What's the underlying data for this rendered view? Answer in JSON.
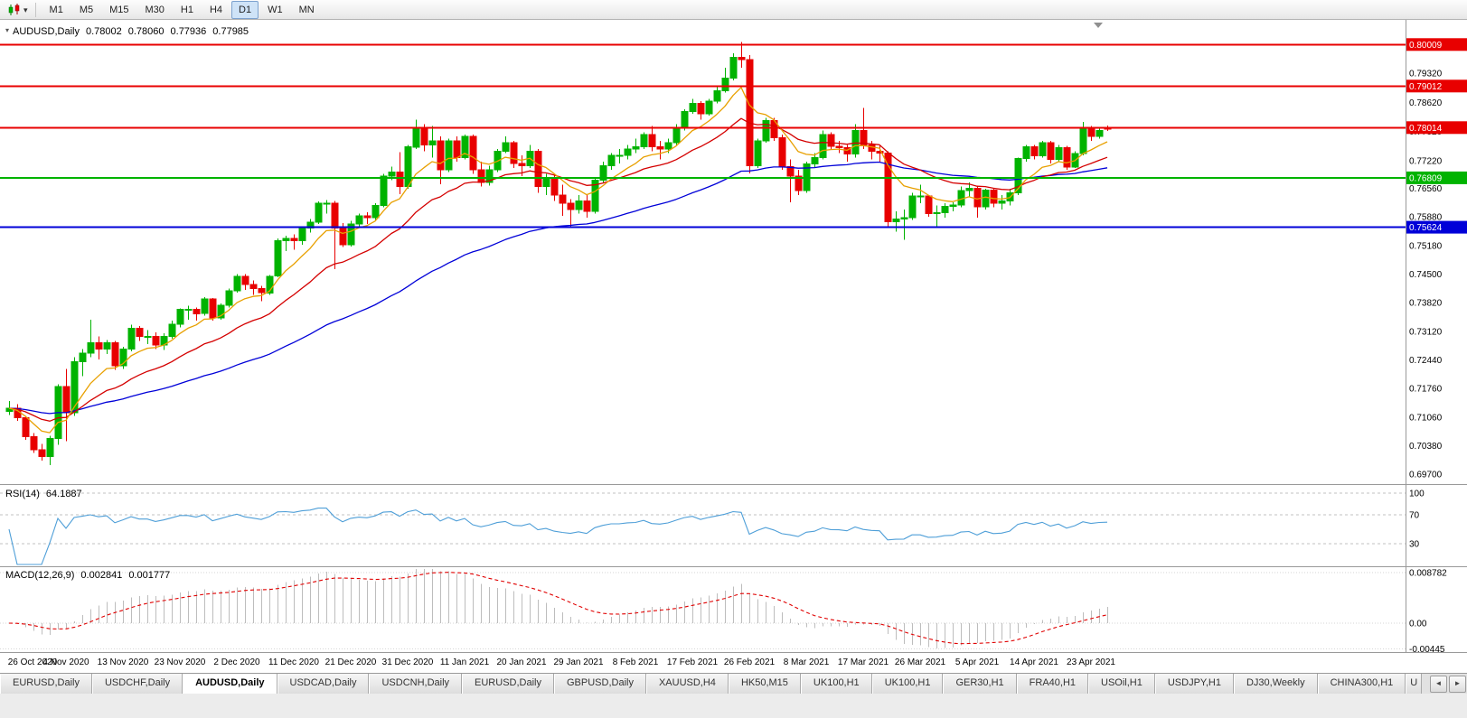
{
  "toolbar": {
    "timeframes": [
      "M1",
      "M5",
      "M15",
      "M30",
      "H1",
      "H4",
      "D1",
      "W1",
      "MN"
    ],
    "active_timeframe": "D1",
    "dropdown_icon": "▾"
  },
  "chart": {
    "symbol_title": "AUDUSD,Daily",
    "oct_icon": "▾",
    "ohlc": {
      "open": "0.78002",
      "high": "0.78060",
      "low": "0.77936",
      "close": "0.77985"
    }
  },
  "rsi_panel": {
    "label": "RSI(14)",
    "value": "64.1887",
    "levels": [
      100,
      70,
      30
    ],
    "axis_labels": [
      "100",
      "70",
      "30"
    ],
    "line_color": "#4f9fd8"
  },
  "macd_panel": {
    "label": "MACD(12,26,9)",
    "value_main": "0.002841",
    "value_signal": "0.001777",
    "axis_values": [
      0.008782,
      0,
      -0.00445
    ],
    "axis_labels": [
      "0.008782",
      "0.00",
      "-0.00445"
    ],
    "histogram_color": "#bdbdbd",
    "signal_color": "#e00000"
  },
  "tabs": {
    "items": [
      "EURUSD,Daily",
      "USDCHF,Daily",
      "AUDUSD,Daily",
      "USDCAD,Daily",
      "USDCNH,Daily",
      "EURUSD,Daily",
      "GBPUSD,Daily",
      "XAUUSD,H4",
      "HK50,M15",
      "UK100,H1",
      "UK100,H1",
      "GER30,H1",
      "FRA40,H1",
      "USOil,H1",
      "USDJPY,H1",
      "DJ30,Weekly",
      "CHINA300,H1"
    ],
    "active_index": 2,
    "partial_tab": "U",
    "scroll_left_icon": "◄",
    "scroll_right_icon": "►"
  },
  "chart_data": {
    "type": "candlestick",
    "title": "AUDUSD,Daily",
    "symbol": "AUDUSD",
    "timeframe": "Daily",
    "x_labels": [
      "26 Oct 2020",
      "4 Nov 2020",
      "13 Nov 2020",
      "23 Nov 2020",
      "2 Dec 2020",
      "11 Dec 2020",
      "21 Dec 2020",
      "31 Dec 2020",
      "11 Jan 2021",
      "20 Jan 2021",
      "29 Jan 2021",
      "8 Feb 2021",
      "17 Feb 2021",
      "26 Feb 2021",
      "8 Mar 2021",
      "17 Mar 2021",
      "26 Mar 2021",
      "5 Apr 2021",
      "14 Apr 2021",
      "23 Apr 2021"
    ],
    "bars_per_label": 7,
    "price_range": [
      0.6946,
      0.806
    ],
    "price_axis_ticks": [
      0.7932,
      0.7862,
      0.7792,
      0.7722,
      0.7656,
      0.7588,
      0.7518,
      0.745,
      0.7382,
      0.7312,
      0.7244,
      0.7176,
      0.7106,
      0.7038,
      0.697
    ],
    "up_color": "#00b300",
    "down_color": "#e80000",
    "horizontal_lines": [
      {
        "price": 0.80009,
        "label": "0.80009",
        "color": "#e80000"
      },
      {
        "price": 0.79012,
        "label": "0.79012",
        "color": "#e80000"
      },
      {
        "price": 0.78014,
        "label": "0.78014",
        "color": "#e80000"
      },
      {
        "price": 0.76809,
        "label": "0.76809",
        "color": "#00b300"
      },
      {
        "price": 0.75624,
        "label": "0.75624",
        "color": "#0000d8"
      }
    ],
    "moving_averages": [
      {
        "type": "EMA",
        "period": 55,
        "color": "#0000d8"
      },
      {
        "type": "EMA",
        "period": 20,
        "color": "#d40000"
      },
      {
        "type": "EMA",
        "period": 8,
        "color": "#e8a000"
      }
    ],
    "candles_ohlc": [
      [
        0.712,
        0.7145,
        0.7112,
        0.7128
      ],
      [
        0.7128,
        0.7138,
        0.7098,
        0.7105
      ],
      [
        0.7105,
        0.711,
        0.7052,
        0.706
      ],
      [
        0.706,
        0.7068,
        0.7021,
        0.7028
      ],
      [
        0.7028,
        0.7042,
        0.7002,
        0.7012
      ],
      [
        0.7012,
        0.7062,
        0.6991,
        0.7055
      ],
      [
        0.7055,
        0.7185,
        0.704,
        0.718
      ],
      [
        0.718,
        0.7222,
        0.7049,
        0.7117
      ],
      [
        0.7117,
        0.725,
        0.711,
        0.724
      ],
      [
        0.724,
        0.727,
        0.7205,
        0.726
      ],
      [
        0.726,
        0.734,
        0.725,
        0.7285
      ],
      [
        0.7285,
        0.73,
        0.7245,
        0.727
      ],
      [
        0.727,
        0.7292,
        0.7258,
        0.7285
      ],
      [
        0.7285,
        0.729,
        0.722,
        0.723
      ],
      [
        0.723,
        0.7275,
        0.7222,
        0.727
      ],
      [
        0.727,
        0.7328,
        0.7265,
        0.732
      ],
      [
        0.732,
        0.7325,
        0.729,
        0.73
      ],
      [
        0.73,
        0.7315,
        0.7282,
        0.73
      ],
      [
        0.73,
        0.731,
        0.727,
        0.728
      ],
      [
        0.728,
        0.7308,
        0.7268,
        0.73
      ],
      [
        0.73,
        0.7338,
        0.7295,
        0.733
      ],
      [
        0.733,
        0.7368,
        0.7322,
        0.7365
      ],
      [
        0.7365,
        0.7374,
        0.734,
        0.7365
      ],
      [
        0.7365,
        0.737,
        0.7338,
        0.7355
      ],
      [
        0.7355,
        0.7395,
        0.735,
        0.739
      ],
      [
        0.739,
        0.7392,
        0.7338,
        0.7345
      ],
      [
        0.7345,
        0.738,
        0.734,
        0.7375
      ],
      [
        0.7375,
        0.7415,
        0.737,
        0.741
      ],
      [
        0.741,
        0.745,
        0.7405,
        0.7445
      ],
      [
        0.7445,
        0.745,
        0.7412,
        0.7425
      ],
      [
        0.7425,
        0.7435,
        0.74,
        0.7415
      ],
      [
        0.7415,
        0.7422,
        0.7385,
        0.7405
      ],
      [
        0.7405,
        0.7448,
        0.74,
        0.7445
      ],
      [
        0.7445,
        0.7535,
        0.7442,
        0.753
      ],
      [
        0.753,
        0.7542,
        0.7505,
        0.7535
      ],
      [
        0.7535,
        0.7545,
        0.7508,
        0.753
      ],
      [
        0.753,
        0.7565,
        0.752,
        0.756
      ],
      [
        0.756,
        0.7582,
        0.755,
        0.7575
      ],
      [
        0.7575,
        0.7624,
        0.757,
        0.762
      ],
      [
        0.762,
        0.7628,
        0.7595,
        0.762
      ],
      [
        0.762,
        0.7625,
        0.7462,
        0.756
      ],
      [
        0.756,
        0.7572,
        0.7515,
        0.752
      ],
      [
        0.752,
        0.7578,
        0.7516,
        0.757
      ],
      [
        0.757,
        0.7595,
        0.7562,
        0.759
      ],
      [
        0.759,
        0.7598,
        0.757,
        0.7585
      ],
      [
        0.7585,
        0.762,
        0.758,
        0.7615
      ],
      [
        0.7615,
        0.769,
        0.761,
        0.7685
      ],
      [
        0.7685,
        0.7708,
        0.7675,
        0.7695
      ],
      [
        0.7695,
        0.7743,
        0.7642,
        0.766
      ],
      [
        0.766,
        0.776,
        0.7655,
        0.7755
      ],
      [
        0.7755,
        0.782,
        0.775,
        0.78
      ],
      [
        0.78,
        0.781,
        0.7745,
        0.776
      ],
      [
        0.776,
        0.7805,
        0.773,
        0.777
      ],
      [
        0.777,
        0.778,
        0.7666,
        0.77
      ],
      [
        0.77,
        0.7775,
        0.7695,
        0.777
      ],
      [
        0.777,
        0.778,
        0.772,
        0.773
      ],
      [
        0.773,
        0.7785,
        0.7725,
        0.778
      ],
      [
        0.778,
        0.7785,
        0.769,
        0.77
      ],
      [
        0.77,
        0.772,
        0.766,
        0.767
      ],
      [
        0.767,
        0.771,
        0.7662,
        0.77
      ],
      [
        0.77,
        0.775,
        0.7695,
        0.7745
      ],
      [
        0.7745,
        0.778,
        0.774,
        0.7765
      ],
      [
        0.7765,
        0.777,
        0.7705,
        0.7715
      ],
      [
        0.7715,
        0.7735,
        0.7685,
        0.771
      ],
      [
        0.771,
        0.776,
        0.7705,
        0.7745
      ],
      [
        0.7745,
        0.775,
        0.7645,
        0.766
      ],
      [
        0.766,
        0.769,
        0.764,
        0.768
      ],
      [
        0.768,
        0.769,
        0.7625,
        0.764
      ],
      [
        0.764,
        0.7665,
        0.759,
        0.762
      ],
      [
        0.762,
        0.763,
        0.7562,
        0.7605
      ],
      [
        0.7605,
        0.764,
        0.7595,
        0.7625
      ],
      [
        0.7625,
        0.764,
        0.7585,
        0.76
      ],
      [
        0.76,
        0.768,
        0.7595,
        0.7675
      ],
      [
        0.7675,
        0.772,
        0.767,
        0.771
      ],
      [
        0.771,
        0.774,
        0.77,
        0.7735
      ],
      [
        0.7735,
        0.775,
        0.7715,
        0.7735
      ],
      [
        0.7735,
        0.776,
        0.7725,
        0.775
      ],
      [
        0.775,
        0.7775,
        0.774,
        0.7755
      ],
      [
        0.7755,
        0.779,
        0.775,
        0.7785
      ],
      [
        0.7785,
        0.7805,
        0.7745,
        0.7755
      ],
      [
        0.7755,
        0.777,
        0.7725,
        0.775
      ],
      [
        0.775,
        0.7775,
        0.774,
        0.7765
      ],
      [
        0.7765,
        0.781,
        0.776,
        0.78
      ],
      [
        0.78,
        0.7845,
        0.7795,
        0.784
      ],
      [
        0.784,
        0.787,
        0.7835,
        0.786
      ],
      [
        0.786,
        0.7865,
        0.782,
        0.7835
      ],
      [
        0.7835,
        0.787,
        0.783,
        0.7865
      ],
      [
        0.7865,
        0.79,
        0.786,
        0.789
      ],
      [
        0.789,
        0.7945,
        0.7885,
        0.792
      ],
      [
        0.792,
        0.798,
        0.7915,
        0.797
      ],
      [
        0.797,
        0.8007,
        0.7945,
        0.7965
      ],
      [
        0.7965,
        0.7975,
        0.7692,
        0.771
      ],
      [
        0.771,
        0.7775,
        0.7705,
        0.777
      ],
      [
        0.777,
        0.7825,
        0.7765,
        0.7818
      ],
      [
        0.7818,
        0.7825,
        0.777,
        0.7777
      ],
      [
        0.7777,
        0.7785,
        0.77,
        0.7708
      ],
      [
        0.7708,
        0.7725,
        0.7622,
        0.7685
      ],
      [
        0.7685,
        0.77,
        0.764,
        0.765
      ],
      [
        0.765,
        0.772,
        0.7645,
        0.7714
      ],
      [
        0.7714,
        0.774,
        0.7705,
        0.7729
      ],
      [
        0.7729,
        0.7795,
        0.7725,
        0.7785
      ],
      [
        0.7785,
        0.779,
        0.775,
        0.7757
      ],
      [
        0.7757,
        0.777,
        0.774,
        0.7753
      ],
      [
        0.7753,
        0.776,
        0.772,
        0.7738
      ],
      [
        0.7738,
        0.781,
        0.773,
        0.7795
      ],
      [
        0.7795,
        0.7849,
        0.775,
        0.776
      ],
      [
        0.776,
        0.777,
        0.7725,
        0.7745
      ],
      [
        0.7745,
        0.776,
        0.772,
        0.774
      ],
      [
        0.774,
        0.7745,
        0.7563,
        0.7575
      ],
      [
        0.7575,
        0.76,
        0.7552,
        0.7582
      ],
      [
        0.7582,
        0.7605,
        0.7532,
        0.7585
      ],
      [
        0.7585,
        0.7645,
        0.758,
        0.7637
      ],
      [
        0.7637,
        0.7665,
        0.762,
        0.7637
      ],
      [
        0.7637,
        0.764,
        0.7588,
        0.7595
      ],
      [
        0.7595,
        0.7615,
        0.756,
        0.7597
      ],
      [
        0.7597,
        0.762,
        0.7585,
        0.7612
      ],
      [
        0.7612,
        0.7622,
        0.76,
        0.7616
      ],
      [
        0.7616,
        0.766,
        0.761,
        0.765
      ],
      [
        0.765,
        0.767,
        0.7635,
        0.7656
      ],
      [
        0.7656,
        0.766,
        0.7585,
        0.7611
      ],
      [
        0.7611,
        0.7655,
        0.7605,
        0.7651
      ],
      [
        0.7651,
        0.7655,
        0.761,
        0.762
      ],
      [
        0.762,
        0.764,
        0.7605,
        0.7625
      ],
      [
        0.7625,
        0.7655,
        0.7615,
        0.7645
      ],
      [
        0.7645,
        0.773,
        0.764,
        0.7727
      ],
      [
        0.7727,
        0.776,
        0.772,
        0.7755
      ],
      [
        0.7755,
        0.776,
        0.7725,
        0.7734
      ],
      [
        0.7734,
        0.777,
        0.773,
        0.7765
      ],
      [
        0.7765,
        0.777,
        0.7715,
        0.7725
      ],
      [
        0.7725,
        0.776,
        0.772,
        0.7753
      ],
      [
        0.7753,
        0.7758,
        0.77,
        0.7707
      ],
      [
        0.7707,
        0.7745,
        0.7705,
        0.7739
      ],
      [
        0.7739,
        0.7815,
        0.7735,
        0.7798
      ],
      [
        0.7798,
        0.7805,
        0.777,
        0.778
      ],
      [
        0.778,
        0.78,
        0.7775,
        0.7795
      ],
      [
        0.78002,
        0.7806,
        0.77936,
        0.77985
      ]
    ]
  }
}
